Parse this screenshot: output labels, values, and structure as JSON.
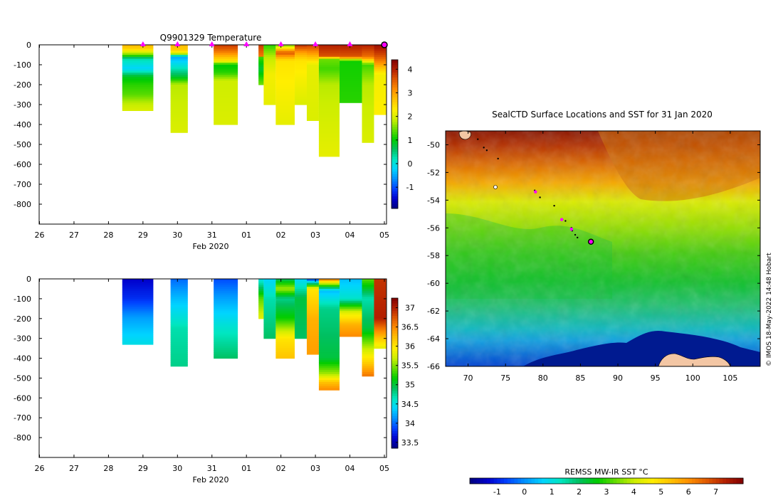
{
  "copyright": "© IMOS 18-May-2022 14:48 Hobart",
  "colormap": [
    "#00007f",
    "#0000cc",
    "#0040ff",
    "#0090ff",
    "#00d4ff",
    "#00e6c0",
    "#00c060",
    "#00cc00",
    "#66dd00",
    "#ccee00",
    "#ffee00",
    "#ffc400",
    "#ff9000",
    "#e05a00",
    "#b42000",
    "#800000"
  ],
  "chart_data": [
    {
      "type": "heatmap",
      "title": "Q9901329  Temperature",
      "xlabel": "Feb 2020",
      "x_tick_labels": [
        "26",
        "27",
        "28",
        "29",
        "30",
        "31",
        "01",
        "02",
        "03",
        "04",
        "05"
      ],
      "y_tick_labels": [
        "0",
        "-100",
        "-200",
        "-300",
        "-400",
        "-500",
        "-600",
        "-700",
        "-800"
      ],
      "ylim": [
        -900,
        0
      ],
      "colorbar_ticks": [
        "-1",
        "0",
        "1",
        "2",
        "3",
        "4"
      ],
      "clim": [
        -1.9,
        4.4
      ],
      "profile_markers_day": [
        3,
        4,
        5,
        6,
        7,
        8,
        9
      ],
      "profiles": [
        {
          "t0": 2.4,
          "t1": 3.3,
          "depth": 330,
          "col": [
            [
              0,
              2.8
            ],
            [
              20,
              2.6
            ],
            [
              50,
              1.5
            ],
            [
              70,
              0.3
            ],
            [
              120,
              -0.2
            ],
            [
              160,
              0.9
            ],
            [
              200,
              1.2
            ],
            [
              250,
              1.4
            ],
            [
              290,
              1.8
            ],
            [
              330,
              2
            ]
          ]
        },
        {
          "t0": 3.8,
          "t1": 4.3,
          "depth": 440,
          "col": [
            [
              0,
              2.8
            ],
            [
              30,
              2.6
            ],
            [
              45,
              1.8
            ],
            [
              60,
              -0.5
            ],
            [
              110,
              0.1
            ],
            [
              160,
              0.8
            ],
            [
              200,
              1.8
            ],
            [
              440,
              2
            ]
          ]
        },
        {
          "t0": 5.05,
          "t1": 5.75,
          "depth": 400,
          "col": [
            [
              0,
              3.8
            ],
            [
              30,
              3.4
            ],
            [
              80,
              2.4
            ],
            [
              100,
              1
            ],
            [
              140,
              1.2
            ],
            [
              180,
              1.9
            ],
            [
              400,
              2
            ]
          ]
        },
        {
          "t0": 6.35,
          "t1": 6.5,
          "depth": 60,
          "col": [
            [
              0,
              3.8
            ],
            [
              60,
              3.3
            ]
          ]
        },
        {
          "t0": 6.35,
          "t1": 6.5,
          "depth": 200,
          "col": [
            [
              60,
              1.3
            ],
            [
              120,
              0.8
            ],
            [
              200,
              1.5
            ]
          ]
        },
        {
          "t0": 6.5,
          "t1": 6.85,
          "depth": 300,
          "col": [
            [
              0,
              1.2
            ],
            [
              60,
              1.8
            ],
            [
              150,
              2.2
            ],
            [
              300,
              2.1
            ]
          ]
        },
        {
          "t0": 6.85,
          "t1": 7.4,
          "depth": 395,
          "col": [
            [
              0,
              1.5
            ],
            [
              40,
              3.6
            ],
            [
              80,
              2.4
            ],
            [
              395,
              2.1
            ]
          ]
        },
        {
          "t0": 7.4,
          "t1": 7.75,
          "depth": 300,
          "col": [
            [
              0,
              3.9
            ],
            [
              40,
              3
            ],
            [
              80,
              2.4
            ],
            [
              300,
              2
            ]
          ]
        },
        {
          "t0": 7.75,
          "t1": 8.1,
          "depth": 380,
          "col": [
            [
              0,
              3.8
            ],
            [
              40,
              3.1
            ],
            [
              100,
              2.1
            ],
            [
              380,
              2
            ]
          ]
        },
        {
          "t0": 8.1,
          "t1": 8.7,
          "depth": 560,
          "col": [
            [
              0,
              4
            ],
            [
              60,
              3.6
            ],
            [
              70,
              1.5
            ],
            [
              120,
              1.3
            ],
            [
              200,
              1.8
            ],
            [
              560,
              2.1
            ]
          ]
        },
        {
          "t0": 8.7,
          "t1": 9.35,
          "depth": 285,
          "col": [
            [
              0,
              4
            ],
            [
              60,
              3.6
            ],
            [
              80,
              1.1
            ],
            [
              285,
              1.2
            ]
          ]
        },
        {
          "t0": 9.35,
          "t1": 9.7,
          "depth": 490,
          "col": [
            [
              0,
              4
            ],
            [
              60,
              3.4
            ],
            [
              100,
              1.3
            ],
            [
              200,
              1.8
            ],
            [
              490,
              2
            ]
          ]
        },
        {
          "t0": 9.7,
          "t1": 10.05,
          "depth": 350,
          "col": [
            [
              0,
              4.2
            ],
            [
              60,
              3.6
            ],
            [
              150,
              2.2
            ],
            [
              350,
              2.3
            ]
          ]
        }
      ]
    },
    {
      "type": "heatmap",
      "title": "",
      "xlabel": "Feb 2020",
      "x_tick_labels": [
        "26",
        "27",
        "28",
        "29",
        "30",
        "31",
        "01",
        "02",
        "03",
        "04",
        "05"
      ],
      "y_tick_labels": [
        "0",
        "-100",
        "-200",
        "-300",
        "-400",
        "-500",
        "-600",
        "-700",
        "-800"
      ],
      "ylim": [
        -900,
        0
      ],
      "colorbar_ticks": [
        "33.5",
        "34",
        "34.5",
        "35",
        "35.5",
        "36",
        "36.5",
        "37"
      ],
      "clim": [
        33.35,
        37.25
      ],
      "profiles": [
        {
          "t0": 2.4,
          "t1": 3.3,
          "depth": 330,
          "col": [
            [
              0,
              33.6
            ],
            [
              100,
              33.8
            ],
            [
              200,
              34.2
            ],
            [
              330,
              34.5
            ]
          ]
        },
        {
          "t0": 3.8,
          "t1": 4.3,
          "depth": 440,
          "col": [
            [
              0,
              34
            ],
            [
              100,
              34.3
            ],
            [
              250,
              34.7
            ],
            [
              440,
              34.8
            ]
          ]
        },
        {
          "t0": 5.05,
          "t1": 5.75,
          "depth": 400,
          "col": [
            [
              0,
              33.9
            ],
            [
              100,
              34.2
            ],
            [
              250,
              34.6
            ],
            [
              400,
              34.9
            ]
          ]
        },
        {
          "t0": 6.35,
          "t1": 6.5,
          "depth": 200,
          "col": [
            [
              0,
              34.5
            ],
            [
              100,
              35.4
            ],
            [
              200,
              35.8
            ]
          ]
        },
        {
          "t0": 6.5,
          "t1": 6.85,
          "depth": 300,
          "col": [
            [
              0,
              34.4
            ],
            [
              100,
              34.7
            ],
            [
              300,
              34.9
            ]
          ]
        },
        {
          "t0": 6.85,
          "t1": 7.4,
          "depth": 395,
          "col": [
            [
              0,
              34.9
            ],
            [
              50,
              35.6
            ],
            [
              100,
              34.8
            ],
            [
              200,
              35.2
            ],
            [
              300,
              36
            ],
            [
              395,
              36.2
            ]
          ]
        },
        {
          "t0": 7.4,
          "t1": 7.75,
          "depth": 300,
          "col": [
            [
              0,
              34.4
            ],
            [
              100,
              35
            ],
            [
              300,
              34.9
            ]
          ]
        },
        {
          "t0": 7.75,
          "t1": 8.1,
          "depth": 380,
          "col": [
            [
              0,
              33.8
            ],
            [
              50,
              36
            ],
            [
              200,
              36.3
            ],
            [
              380,
              36.4
            ]
          ]
        },
        {
          "t0": 8.1,
          "t1": 8.7,
          "depth": 560,
          "col": [
            [
              0,
              36.6
            ],
            [
              60,
              34.3
            ],
            [
              150,
              34.8
            ],
            [
              400,
              35
            ],
            [
              480,
              35.6
            ],
            [
              520,
              36.2
            ],
            [
              560,
              36.5
            ]
          ]
        },
        {
          "t0": 8.7,
          "t1": 9.35,
          "depth": 290,
          "col": [
            [
              0,
              34.3
            ],
            [
              100,
              34.6
            ],
            [
              170,
              35.8
            ],
            [
              230,
              36.3
            ],
            [
              290,
              36.5
            ]
          ]
        },
        {
          "t0": 9.35,
          "t1": 9.7,
          "depth": 490,
          "col": [
            [
              0,
              35.4
            ],
            [
              100,
              34.7
            ],
            [
              250,
              35
            ],
            [
              400,
              36
            ],
            [
              490,
              36.6
            ]
          ]
        },
        {
          "t0": 9.7,
          "t1": 10.05,
          "depth": 350,
          "col": [
            [
              0,
              36.9
            ],
            [
              200,
              37
            ],
            [
              300,
              36.2
            ],
            [
              350,
              35.8
            ]
          ]
        }
      ]
    },
    {
      "type": "heatmap",
      "title": "SealCTD Surface Locations and SST for 31 Jan 2020",
      "x_tick_labels": [
        "70",
        "75",
        "80",
        "85",
        "90",
        "95",
        "100",
        "105"
      ],
      "x_ticks": [
        70,
        75,
        80,
        85,
        90,
        95,
        100,
        105
      ],
      "y_tick_labels": [
        "-50",
        "-52",
        "-54",
        "-56",
        "-58",
        "-60",
        "-62",
        "-64",
        "-66"
      ],
      "y_ticks": [
        -50,
        -52,
        -54,
        -56,
        -58,
        -60,
        -62,
        -64,
        -66
      ],
      "xlim": [
        67,
        109
      ],
      "ylim": [
        -66,
        -49
      ],
      "colorbar_label": "REMSS MW-IR SST °C",
      "colorbar_ticks": [
        "-1",
        "0",
        "1",
        "2",
        "3",
        "4",
        "5",
        "6",
        "7"
      ],
      "clim": [
        -2,
        8
      ],
      "track_points": [
        [
          71.3,
          -49.6
        ],
        [
          72.1,
          -50.2
        ],
        [
          72.5,
          -50.4
        ],
        [
          74,
          -51
        ],
        [
          78.9,
          -53.3
        ],
        [
          79.6,
          -53.8
        ],
        [
          81.5,
          -54.4
        ],
        [
          82.6,
          -55.4
        ],
        [
          83,
          -55.5
        ],
        [
          83.8,
          -56
        ],
        [
          83.9,
          -56.2
        ],
        [
          84.3,
          -56.5
        ],
        [
          84.6,
          -56.7
        ]
      ],
      "surface_points": [
        [
          79,
          -53.4
        ],
        [
          82.5,
          -55.4
        ],
        [
          83.8,
          -56.1
        ]
      ],
      "last_position": [
        86.4,
        -57
      ]
    }
  ]
}
